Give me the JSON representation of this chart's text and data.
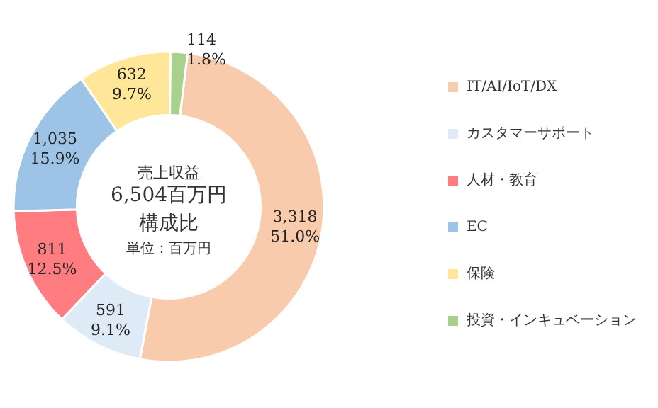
{
  "chart_data": {
    "type": "donut",
    "categories": [
      "IT/AI/IoT/DX",
      "カスタマーサポート",
      "人材・教育",
      "EC",
      "保険",
      "投資・インキュベーション"
    ],
    "values": [
      3318,
      591,
      811,
      1035,
      632,
      114
    ],
    "colors": [
      "#f8cbad",
      "#deebf7",
      "#ff7c80",
      "#9dc3e6",
      "#ffe699",
      "#a9d18e"
    ],
    "value_labels": [
      "3,318\n51.0%",
      "591\n9.1%",
      "811\n12.5%",
      "1,035\n15.9%",
      "632\n9.7%",
      "114\n1.8%"
    ],
    "annotations": [
      "売上収益",
      "6,504百万円",
      "構成比",
      "単位：百万円"
    ],
    "legend": "right"
  }
}
